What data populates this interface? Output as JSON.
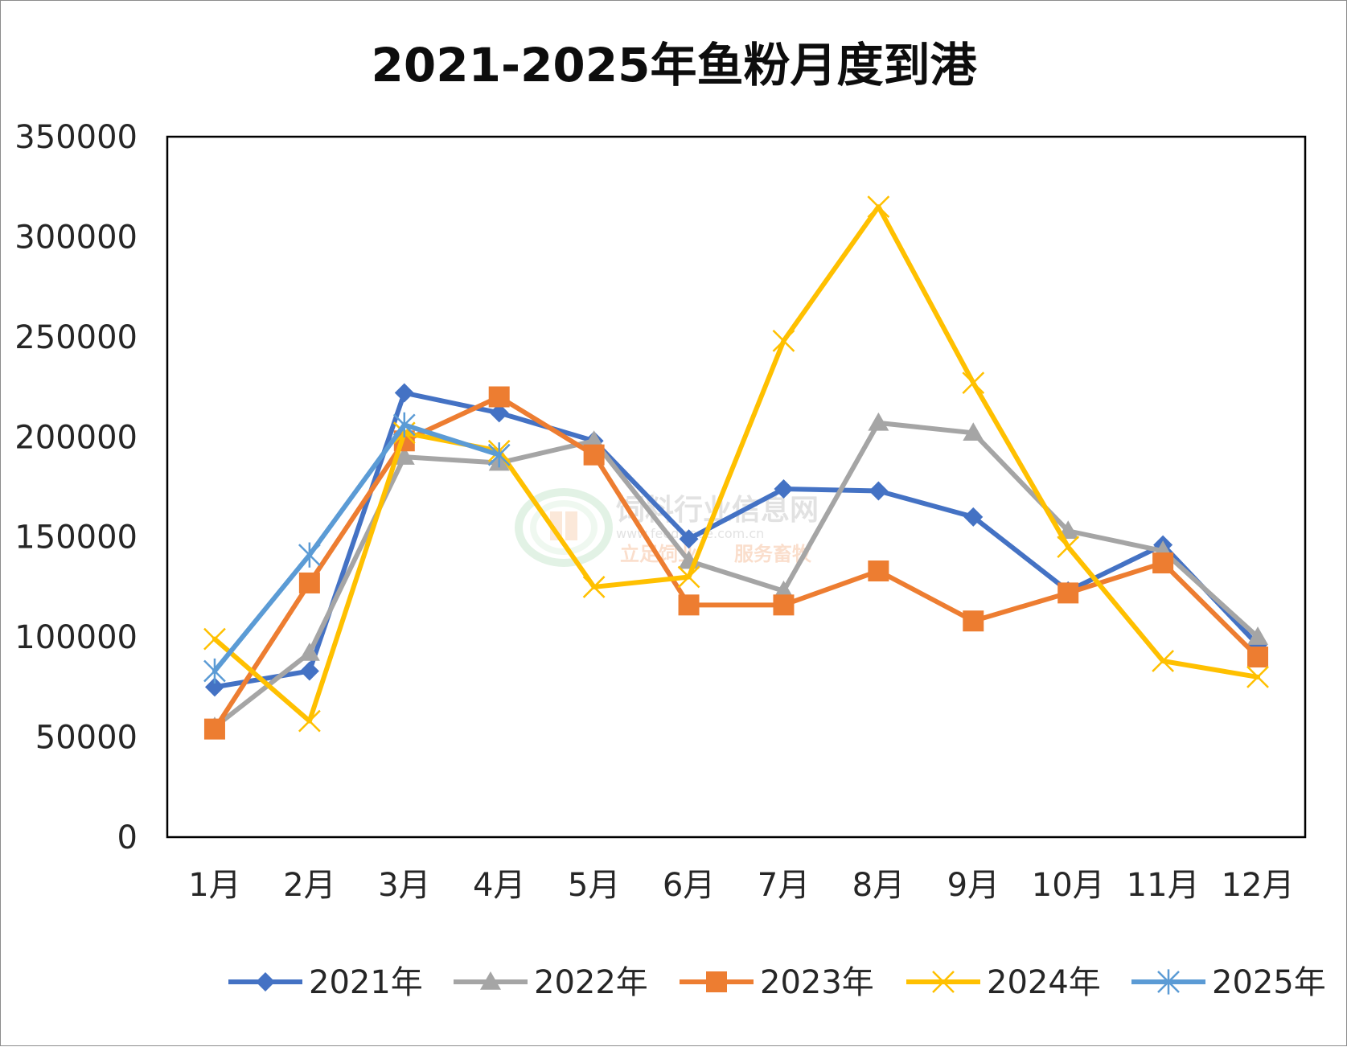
{
  "chart_data": {
    "type": "line",
    "title": "2021-2025年鱼粉月度到港",
    "xlabel": "",
    "ylabel": "",
    "categories": [
      "1月",
      "2月",
      "3月",
      "4月",
      "5月",
      "6月",
      "7月",
      "8月",
      "9月",
      "10月",
      "11月",
      "12月"
    ],
    "ylim": [
      0,
      350000
    ],
    "yticks": [
      0,
      50000,
      100000,
      150000,
      200000,
      250000,
      300000,
      350000
    ],
    "ytick_labels": [
      "0",
      "50000",
      "100000",
      "150000",
      "200000",
      "250000",
      "300000",
      "350000"
    ],
    "grid": false,
    "legend_position": "bottom",
    "series": [
      {
        "name": "2021年",
        "color": "#4472c4",
        "marker": "diamond",
        "values": [
          75000,
          83000,
          222000,
          212000,
          198000,
          149000,
          174000,
          173000,
          160000,
          123000,
          146000,
          96000
        ]
      },
      {
        "name": "2022年",
        "color": "#a5a5a5",
        "marker": "triangle",
        "values": [
          55000,
          92000,
          190000,
          187000,
          198000,
          138000,
          123000,
          207000,
          202000,
          153000,
          143000,
          100000
        ]
      },
      {
        "name": "2023年",
        "color": "#ed7d31",
        "marker": "square",
        "values": [
          54000,
          127000,
          198000,
          220000,
          191000,
          116000,
          116000,
          133000,
          108000,
          122000,
          137000,
          90000
        ]
      },
      {
        "name": "2024年",
        "color": "#ffc000",
        "marker": "x",
        "values": [
          99000,
          58000,
          202000,
          193000,
          125000,
          130000,
          248000,
          315000,
          227000,
          145000,
          88000,
          80000
        ]
      },
      {
        "name": "2025年",
        "color": "#5b9bd5",
        "marker": "star",
        "values": [
          83000,
          141000,
          206000,
          191000,
          null,
          null,
          null,
          null,
          null,
          null,
          null,
          null
        ]
      }
    ]
  },
  "watermark": {
    "title": "饲料行业信息网",
    "url": "www.feedtrade.com.cn",
    "slogan_left": "立足饲业",
    "slogan_right": "服务畜牧"
  }
}
